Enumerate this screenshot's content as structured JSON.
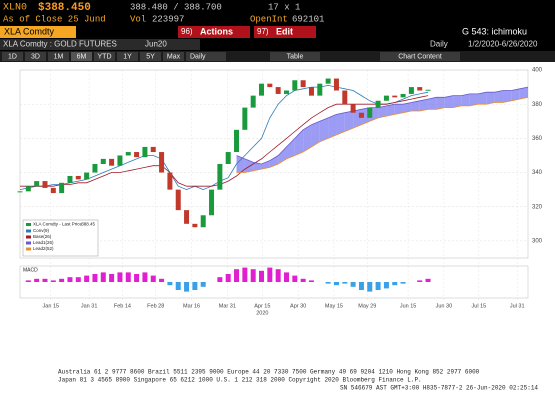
{
  "header": {
    "ticker": "XLN0",
    "price": "$388.450",
    "bid_ask": "388.480 / 388.700",
    "size": "17 x 1",
    "as_of": "As of Close 25 Jund",
    "vol_label": "Vol",
    "vol": "223997",
    "oi_label": "OpenInt",
    "oi": "692101"
  },
  "toolbar": {
    "security": "XLA Comdty",
    "actions_num": "96)",
    "actions": "Actions",
    "edit_num": "97)",
    "edit": "Edit",
    "function": "G 543: ichimoku"
  },
  "subheader": {
    "name": "XLA Comdty : GOLD FUTURES",
    "contract": "Jun20",
    "period": "Daily",
    "range": "1/2/2020-6/26/2020"
  },
  "buttons": [
    "1D",
    "3D",
    "1M",
    "6M",
    "YTD",
    "1Y",
    "5Y",
    "Max"
  ],
  "dropdown": "Daily",
  "table_button": "Table",
  "content_button": "Chart Content",
  "chart_data": {
    "type": "candlestick",
    "closes": [
      329,
      332,
      335,
      331,
      328,
      334,
      338,
      336,
      340,
      345,
      348,
      344,
      350,
      352,
      349,
      355,
      352,
      340,
      330,
      318,
      310,
      308,
      315,
      330,
      345,
      352,
      365,
      378,
      385,
      392,
      390,
      386,
      388,
      394,
      390,
      385,
      392,
      395,
      388,
      380,
      375,
      372,
      378,
      382,
      385,
      384,
      386,
      390,
      388,
      388.45
    ],
    "up_color": "#1a9a3c",
    "down_color": "#c0392b",
    "series": [
      {
        "name": "Conv(9)",
        "color": "#2b7bb9",
        "values": [
          330,
          331,
          332,
          332,
          333,
          333,
          334,
          335,
          336,
          338,
          340,
          342,
          344,
          346,
          348,
          350,
          350,
          348,
          340,
          332,
          330,
          332,
          330,
          332,
          335,
          337,
          345,
          350,
          355,
          360,
          372,
          380,
          385,
          388,
          389,
          390,
          390,
          391,
          390,
          389,
          388,
          385,
          382,
          380,
          380,
          381,
          383,
          385,
          386,
          387
        ]
      },
      {
        "name": "Base(26)",
        "color": "#a01a2a",
        "values": [
          332,
          332,
          332,
          332,
          332,
          333,
          333,
          334,
          334,
          336,
          338,
          340,
          340,
          341,
          342,
          343,
          344,
          344,
          340,
          334,
          332,
          332,
          332,
          332,
          333,
          335,
          338,
          342,
          345,
          348,
          352,
          356,
          360,
          364,
          368,
          372,
          375,
          378,
          380,
          380,
          380,
          380,
          380,
          380,
          380,
          381,
          382,
          383,
          384,
          385
        ]
      },
      {
        "name": "Lead1(26)",
        "color": "#6a5acd",
        "values": [
          null,
          null,
          null,
          null,
          null,
          null,
          null,
          null,
          null,
          null,
          null,
          null,
          null,
          null,
          null,
          null,
          null,
          null,
          null,
          null,
          null,
          null,
          null,
          null,
          null,
          null,
          350,
          348,
          346,
          345,
          347,
          350,
          355,
          360,
          365,
          368,
          370,
          372,
          374,
          375,
          376,
          377,
          378,
          378,
          379,
          380,
          380,
          381,
          382,
          383,
          384,
          384,
          385,
          385,
          386,
          386,
          387,
          387,
          388,
          388,
          389,
          390
        ]
      },
      {
        "name": "Lead2(52)",
        "color": "#e8912d",
        "values": [
          null,
          null,
          null,
          null,
          null,
          null,
          null,
          null,
          null,
          null,
          null,
          null,
          null,
          null,
          null,
          null,
          null,
          null,
          null,
          null,
          null,
          null,
          null,
          null,
          null,
          null,
          340,
          340,
          341,
          342,
          343,
          345,
          348,
          350,
          352,
          355,
          358,
          360,
          362,
          364,
          366,
          368,
          370,
          372,
          373,
          374,
          375,
          376,
          376,
          377,
          377,
          378,
          378,
          379,
          379,
          380,
          380,
          381,
          381,
          382,
          383,
          384
        ]
      }
    ],
    "cloud_color": "#7b7bf0",
    "last_price_label": "XLA Comdty - Last Price",
    "ylim": [
      290,
      400
    ],
    "yticks": [
      300,
      320,
      340,
      360,
      380,
      400
    ],
    "xlim": [
      0,
      61
    ],
    "xticks": [
      {
        "value": 3.7,
        "label": "Jan 15"
      },
      {
        "value": 8.3,
        "label": "Jan 31"
      },
      {
        "value": 12.3,
        "label": "Feb 14"
      },
      {
        "value": 16.3,
        "label": "Feb 28"
      },
      {
        "value": 20.6,
        "label": "Mar 16"
      },
      {
        "value": 24.9,
        "label": "Mar 31"
      },
      {
        "value": 29.1,
        "label": "Apr 15"
      },
      {
        "value": 33.4,
        "label": "Apr 30"
      },
      {
        "value": 37.7,
        "label": "May 15"
      },
      {
        "value": 41.7,
        "label": "May 29"
      },
      {
        "value": 46.6,
        "label": "Jun 15"
      },
      {
        "value": 50.9,
        "label": "Jun 30"
      },
      {
        "value": 55.1,
        "label": "Jul 15"
      },
      {
        "value": 59.7,
        "label": "Jul 31"
      }
    ],
    "year_label": "2020",
    "macd": {
      "title": "MACD",
      "values": [
        0,
        1,
        2,
        2,
        1,
        2,
        3,
        3,
        4,
        5,
        6,
        5,
        6,
        6,
        5,
        6,
        4,
        2,
        -2,
        -5,
        -6,
        -5,
        -3,
        0,
        3,
        5,
        8,
        9,
        8,
        7,
        9,
        8,
        6,
        4,
        2,
        1,
        0,
        -1,
        -2,
        -1,
        -3,
        -5,
        -6,
        -5,
        -4,
        -2,
        -1,
        0,
        1,
        2
      ],
      "ylim": [
        -10,
        10
      ],
      "pos_color": "#e020d0",
      "neg_color": "#3aa0e8"
    },
    "grid": true
  },
  "footer": [
    "Australia 61 2 9777 8600 Brazil 5511 2395 9000 Europe 44 20 7330 7500 Germany 49 69 9204 1210 Hong Kong 852 2977 6000",
    "Japan 81 3 4565 8900     Singapore 65 6212 1000     U.S. 1 212 318 2000     Copyright 2020 Bloomberg Finance L.P.",
    "SN 546679 AST GMT+3:00 H835-7877-2 26-Jun-2020 02:25:14"
  ]
}
